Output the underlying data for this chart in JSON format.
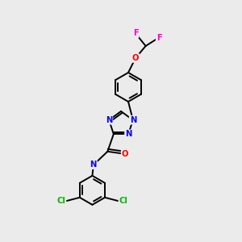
{
  "background_color": "#ebebeb",
  "bond_color": "#000000",
  "atom_colors": {
    "N": "#0000ff",
    "O": "#ff0000",
    "F": "#ff00cc",
    "Cl": "#00bb00",
    "C": "#000000",
    "H": "#777777"
  },
  "lw": 1.4,
  "fs": 7.2,
  "xlim": [
    0,
    10
  ],
  "ylim": [
    0,
    10
  ]
}
